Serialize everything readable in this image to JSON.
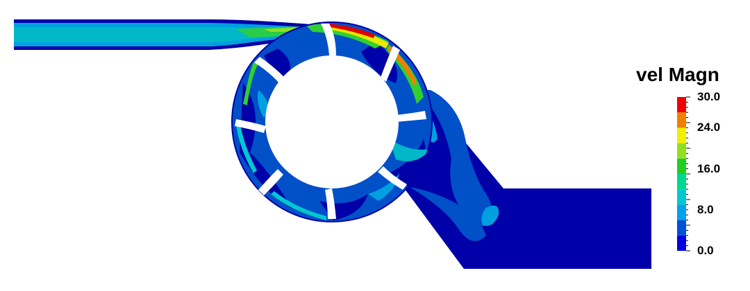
{
  "figure": {
    "variable_label": "vel Magn",
    "colorbar": {
      "min": 0.0,
      "max": 30.0,
      "tick_labels": [
        "30.0",
        "24.0",
        "16.0",
        "8.0",
        "0.0"
      ],
      "tick_values": [
        30.0,
        24.0,
        16.0,
        8.0,
        0.0
      ],
      "bands": [
        {
          "from": 0.0,
          "to": 3.0,
          "color": "#0000e0"
        },
        {
          "from": 3.0,
          "to": 6.0,
          "color": "#0050d8"
        },
        {
          "from": 6.0,
          "to": 9.0,
          "color": "#00a0f0"
        },
        {
          "from": 9.0,
          "to": 12.0,
          "color": "#00c8d0"
        },
        {
          "from": 12.0,
          "to": 15.0,
          "color": "#00d890"
        },
        {
          "from": 15.0,
          "to": 18.0,
          "color": "#20d020"
        },
        {
          "from": 18.0,
          "to": 21.0,
          "color": "#90e020"
        },
        {
          "from": 21.0,
          "to": 24.0,
          "color": "#f0f000"
        },
        {
          "from": 24.0,
          "to": 27.0,
          "color": "#f08000"
        },
        {
          "from": 27.0,
          "to": 30.0,
          "color": "#f00000"
        }
      ]
    },
    "colors": {
      "background": "#ffffff",
      "domain_dark": "#0000a8",
      "domain_mid": "#0050c8",
      "jet_core": "#00b8c8",
      "jet_edge": "#00a0e0",
      "high_speed_green": "#30d030",
      "high_speed_yellow": "#e8e800",
      "high_speed_red": "#e00000"
    }
  }
}
